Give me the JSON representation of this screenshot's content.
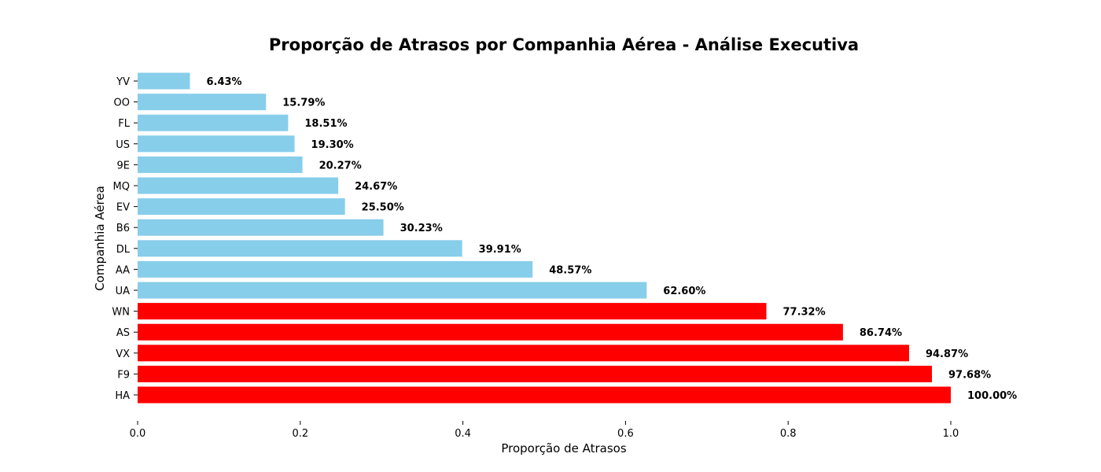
{
  "chart_data": {
    "type": "bar",
    "orientation": "horizontal",
    "title": "Proporção de Atrasos por Companhia Aérea - Análise Executiva",
    "xlabel": "Proporção de Atrasos",
    "ylabel": "Companhia Aérea",
    "xlim": [
      0,
      1.1
    ],
    "xticks": [
      "0.0",
      "0.2",
      "0.4",
      "0.6",
      "0.8",
      "1.0"
    ],
    "grid": false,
    "categories": [
      "YV",
      "OO",
      "FL",
      "US",
      "9E",
      "MQ",
      "EV",
      "B6",
      "DL",
      "AA",
      "UA",
      "WN",
      "AS",
      "VX",
      "F9",
      "HA"
    ],
    "values": [
      0.0643,
      0.1579,
      0.1851,
      0.193,
      0.2027,
      0.2467,
      0.255,
      0.3023,
      0.3991,
      0.4857,
      0.626,
      0.7732,
      0.8674,
      0.9487,
      0.9768,
      1.0
    ],
    "data_labels": [
      "6.43%",
      "15.79%",
      "18.51%",
      "19.30%",
      "20.27%",
      "24.67%",
      "25.50%",
      "30.23%",
      "39.91%",
      "48.57%",
      "62.60%",
      "77.32%",
      "86.74%",
      "94.87%",
      "97.68%",
      "100.00%"
    ],
    "bar_colors": [
      "#87CEEB",
      "#87CEEB",
      "#87CEEB",
      "#87CEEB",
      "#87CEEB",
      "#87CEEB",
      "#87CEEB",
      "#87CEEB",
      "#87CEEB",
      "#87CEEB",
      "#87CEEB",
      "#FF0000",
      "#FF0000",
      "#FF0000",
      "#FF0000",
      "#FF0000"
    ]
  }
}
